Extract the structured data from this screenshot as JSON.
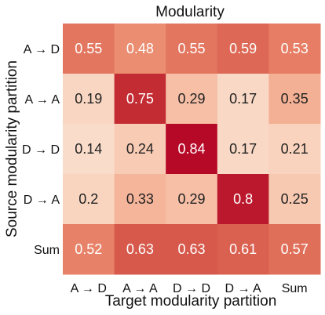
{
  "chart_data": {
    "type": "heatmap",
    "title": "Modularity",
    "xlabel": "Target modularity partition",
    "ylabel": "Source modularity partition",
    "x_categories": [
      "A → D",
      "A → A",
      "D → D",
      "D → A",
      "Sum"
    ],
    "y_categories": [
      "A → D",
      "A → A",
      "D → D",
      "D → A",
      "Sum"
    ],
    "values": [
      [
        0.55,
        0.48,
        0.55,
        0.59,
        0.53
      ],
      [
        0.19,
        0.75,
        0.29,
        0.17,
        0.35
      ],
      [
        0.14,
        0.24,
        0.84,
        0.17,
        0.21
      ],
      [
        0.2,
        0.33,
        0.29,
        0.8,
        0.25
      ],
      [
        0.52,
        0.63,
        0.63,
        0.61,
        0.57
      ]
    ],
    "value_labels": [
      [
        "0.55",
        "0.48",
        "0.55",
        "0.59",
        "0.53"
      ],
      [
        "0.19",
        "0.75",
        "0.29",
        "0.17",
        "0.35"
      ],
      [
        "0.14",
        "0.24",
        "0.84",
        "0.17",
        "0.21"
      ],
      [
        "0.2",
        "0.33",
        "0.29",
        "0.8",
        "0.25"
      ],
      [
        "0.52",
        "0.63",
        "0.63",
        "0.61",
        "0.57"
      ]
    ],
    "colormap": "coolwarm (positive half)",
    "vlim": [
      0,
      1
    ],
    "grid": false,
    "colors": {
      "low": "#fbe9de",
      "mid": "#f3a88a",
      "high": "#b40426"
    }
  }
}
